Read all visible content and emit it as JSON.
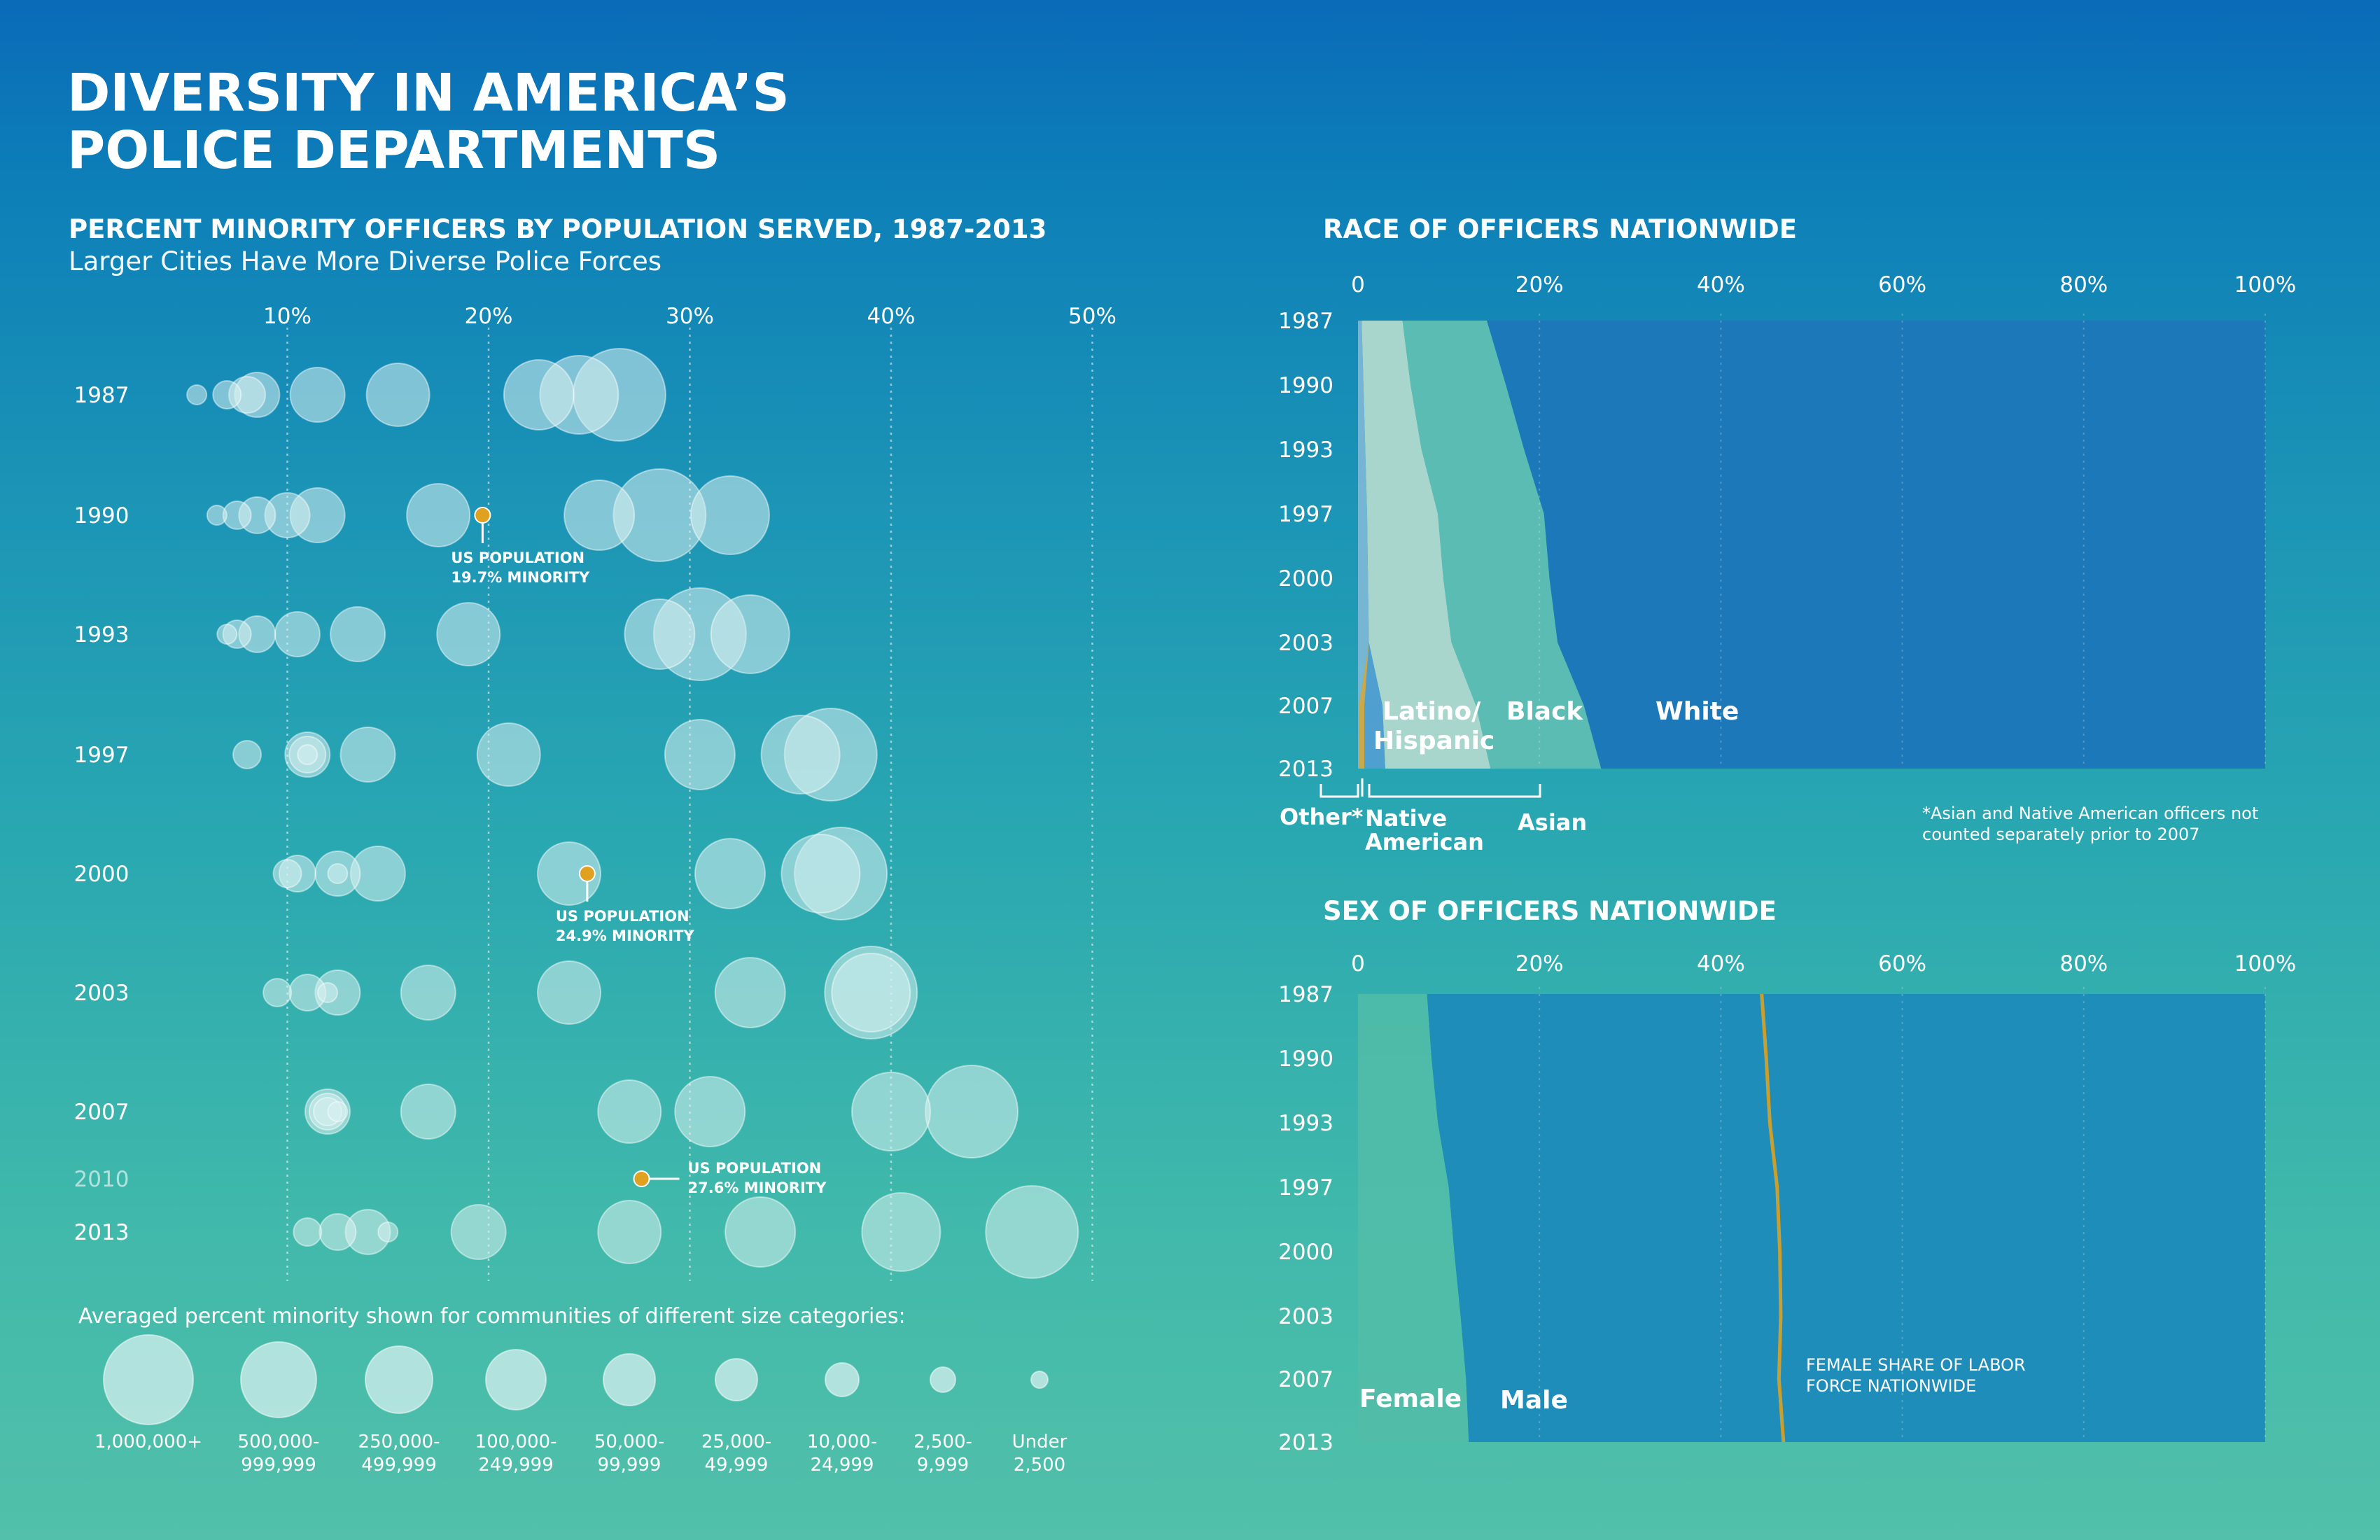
{
  "title": [
    "DIVERSITY IN AMERICA’S",
    "POLICE DEPARTMENTS"
  ],
  "colors": {
    "bubble": "#d9f1f1",
    "us_marker": "#e0a020",
    "race_white": "#1c78b8",
    "race_black": "#5bbcb3",
    "race_latino": "#a9d6cc",
    "race_asian": "#4f9fd0",
    "race_native": "#c9a94a",
    "sex_male": "#1f8dba",
    "sex_female": "#52bda8",
    "labor_line": "#c9a030"
  },
  "chart_data": [
    {
      "type": "scatter",
      "title": "PERCENT MINORITY OFFICERS BY POPULATION SERVED, 1987-2013",
      "subtitle": "Larger Cities Have More Diverse Police Forces",
      "x_ticks": [
        "10%",
        "20%",
        "30%",
        "40%",
        "50%"
      ],
      "x_tick_values": [
        10,
        20,
        30,
        40,
        50
      ],
      "xlim": [
        0,
        53
      ],
      "rows": [
        "1987",
        "1990",
        "1993",
        "1997",
        "2000",
        "2003",
        "2007",
        "2010",
        "2013"
      ],
      "size_categories": [
        "1,000,000+",
        "500,000-999,999",
        "250,000-499,999",
        "100,000-249,999",
        "50,000-99,999",
        "25,000-49,999",
        "10,000-24,999",
        "2,500-9,999",
        "Under 2,500"
      ],
      "series": [
        {
          "year": "1987",
          "values": [
            26.5,
            24.5,
            22.5,
            15.5,
            11.5,
            8.5,
            8.0,
            7.0,
            5.5
          ]
        },
        {
          "year": "1990",
          "values": [
            28.5,
            32.0,
            25.5,
            17.5,
            11.5,
            10.0,
            8.5,
            7.5,
            6.5
          ]
        },
        {
          "year": "1993",
          "values": [
            30.5,
            33.0,
            28.5,
            19.0,
            13.5,
            10.5,
            8.5,
            7.5,
            7.0
          ]
        },
        {
          "year": "1997",
          "values": [
            37.0,
            35.5,
            30.5,
            21.0,
            14.0,
            11.0,
            11.0,
            8.0,
            11.0
          ]
        },
        {
          "year": "2000",
          "values": [
            37.5,
            36.5,
            32.0,
            24.0,
            14.5,
            12.5,
            10.5,
            10.0,
            12.5
          ]
        },
        {
          "year": "2003",
          "values": [
            39.0,
            39.0,
            33.0,
            24.0,
            17.0,
            12.5,
            11.0,
            9.5,
            12.0
          ]
        },
        {
          "year": "2007",
          "values": [
            44.0,
            40.0,
            31.0,
            27.0,
            17.0,
            12.0,
            12.0,
            12.0,
            12.5
          ]
        },
        {
          "year": "2013",
          "values": [
            47.0,
            40.5,
            33.5,
            27.0,
            19.5,
            14.0,
            12.5,
            11.0,
            15.0
          ]
        }
      ],
      "us_population": [
        {
          "year_position": "1990",
          "value": 19.7,
          "label": [
            "US POPULATION",
            "19.7% MINORITY"
          ]
        },
        {
          "year_position": "2000",
          "value": 24.9,
          "label": [
            "US POPULATION",
            "24.9% MINORITY"
          ]
        },
        {
          "year_position": "2010",
          "value": 27.6,
          "label": [
            "US POPULATION",
            "27.6% MINORITY"
          ]
        }
      ],
      "legend_title": "Averaged percent minority shown for communities of different size categories:",
      "legend_labels": [
        [
          "1,000,000+"
        ],
        [
          "500,000-",
          "999,999"
        ],
        [
          "250,000-",
          "499,999"
        ],
        [
          "100,000-",
          "249,999"
        ],
        [
          "50,000-",
          "99,999"
        ],
        [
          "25,000-",
          "49,999"
        ],
        [
          "10,000-",
          "24,999"
        ],
        [
          "2,500-",
          "9,999"
        ],
        [
          "Under",
          "2,500"
        ]
      ]
    },
    {
      "type": "area",
      "title": "RACE OF OFFICERS NATIONWIDE",
      "x_ticks": [
        "0",
        "20%",
        "40%",
        "60%",
        "80%",
        "100%"
      ],
      "x_tick_values": [
        0,
        20,
        40,
        60,
        80,
        100
      ],
      "years": [
        "1987",
        "1990",
        "1993",
        "1997",
        "2000",
        "2003",
        "2007",
        "2013"
      ],
      "series": [
        {
          "name": "Other*",
          "values": [
            0.4,
            0.6,
            0.8,
            1.0,
            1.1,
            1.2,
            0.1,
            0.1
          ]
        },
        {
          "name": "Native American",
          "values": [
            0,
            0,
            0,
            0,
            0,
            0,
            0.6,
            0.6
          ]
        },
        {
          "name": "Asian",
          "values": [
            0,
            0,
            0,
            0,
            0,
            0,
            2.0,
            2.3
          ]
        },
        {
          "name": "Latino/ Hispanic",
          "values": [
            4.5,
            5.2,
            6.2,
            7.8,
            8.3,
            9.1,
            10.3,
            11.6
          ]
        },
        {
          "name": "Black",
          "values": [
            9.3,
            10.5,
            11.3,
            11.7,
            11.7,
            11.7,
            11.9,
            12.2
          ]
        },
        {
          "name": "White",
          "values": [
            85.8,
            83.7,
            81.7,
            79.5,
            78.9,
            78.0,
            75.1,
            73.2
          ]
        }
      ],
      "labels": {
        "latino": [
          "Latino/",
          "Hispanic"
        ],
        "black": "Black",
        "white": "White",
        "other": "Other*",
        "native": [
          "Native",
          "American"
        ],
        "asian": "Asian"
      },
      "footnote": [
        "*Asian and Native American officers not",
        "counted separately prior to 2007"
      ]
    },
    {
      "type": "area",
      "title": "SEX OF OFFICERS NATIONWIDE",
      "x_ticks": [
        "0",
        "20%",
        "40%",
        "60%",
        "80%",
        "100%"
      ],
      "x_tick_values": [
        0,
        20,
        40,
        60,
        80,
        100
      ],
      "years": [
        "1987",
        "1990",
        "1993",
        "1997",
        "2000",
        "2003",
        "2007",
        "2013"
      ],
      "series": [
        {
          "name": "Female",
          "values": [
            7.6,
            8.1,
            8.8,
            10.0,
            10.6,
            11.3,
            11.9,
            12.2
          ]
        },
        {
          "name": "Male",
          "values": [
            92.4,
            91.9,
            91.2,
            90.0,
            89.4,
            88.7,
            88.1,
            87.8
          ]
        }
      ],
      "labor_force_line": {
        "label": [
          "FEMALE SHARE OF LABOR",
          "FORCE NATIONWIDE"
        ],
        "values": [
          44.5,
          45.0,
          45.4,
          46.2,
          46.5,
          46.6,
          46.4,
          46.9
        ]
      },
      "labels": {
        "female": "Female",
        "male": "Male"
      }
    }
  ]
}
